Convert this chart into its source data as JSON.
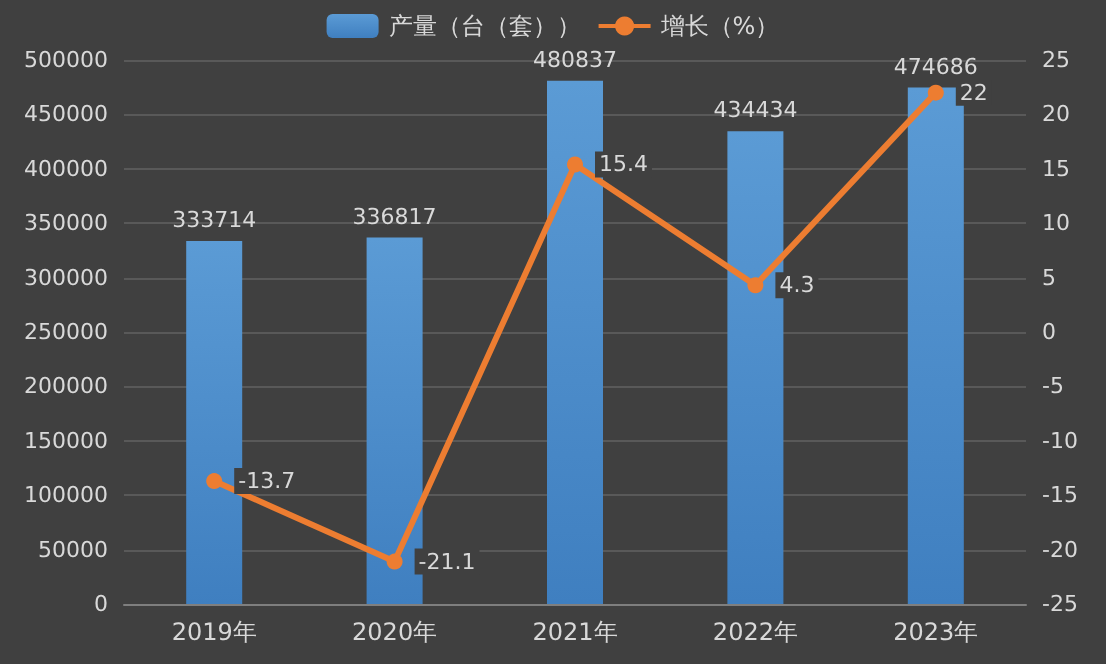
{
  "chart_data": {
    "type": "bar",
    "categories": [
      "2019年",
      "2020年",
      "2021年",
      "2022年",
      "2023年"
    ],
    "series": [
      {
        "name": "产量（台（套））",
        "color": "#5b9bd5",
        "values": [
          333714,
          336817,
          480837,
          434434,
          474686
        ]
      },
      {
        "name": "增长（%）",
        "type": "line",
        "axis": "y2",
        "color": "#ed7d31",
        "values": [
          -13.7,
          -21.1,
          15.4,
          4.3,
          22
        ]
      }
    ],
    "ylim": [
      0,
      500000
    ],
    "yticks": [
      0,
      50000,
      100000,
      150000,
      200000,
      250000,
      300000,
      350000,
      400000,
      450000,
      500000
    ],
    "y2lim": [
      -25,
      25
    ],
    "y2ticks": [
      -25,
      -20,
      -15,
      -10,
      -5,
      0,
      5,
      10,
      15,
      20,
      25
    ],
    "grid": "y",
    "legend": "top",
    "marker": "circle",
    "line_style": "solid",
    "data_labels": true
  }
}
